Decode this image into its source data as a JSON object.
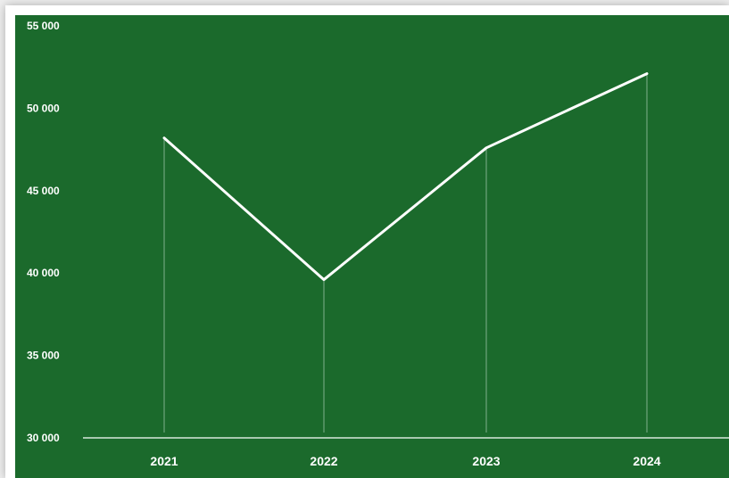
{
  "chart_data": {
    "type": "line",
    "categories": [
      "2021",
      "2022",
      "2023",
      "2024"
    ],
    "series": [
      {
        "values": [
          48200,
          39600,
          47600,
          52100
        ]
      }
    ],
    "ylim": [
      30000,
      55000
    ],
    "yticks": [
      55000,
      50000,
      45000,
      40000,
      35000,
      30000
    ],
    "ytick_labels": [
      "55 000",
      "50 000",
      "45 000",
      "40 000",
      "35 000",
      "30 000"
    ],
    "grid": false,
    "drop_lines": true,
    "xlabel": "",
    "ylabel": "",
    "title": ""
  },
  "colors": {
    "background": "#1b6a2c",
    "line": "#ffffff",
    "drop_line": "#7fb08c",
    "axis": "#d7e8db"
  }
}
